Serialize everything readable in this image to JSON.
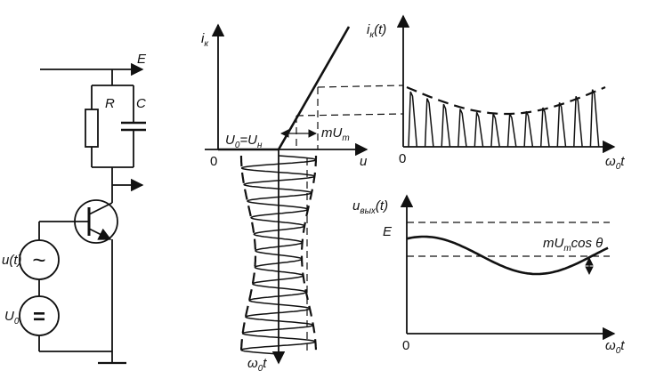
{
  "circuit": {
    "supply_label": "E",
    "resistor_label": "R",
    "capacitor_label": "C",
    "input_signal_label": "u(t)",
    "ac_source_symbol": "~",
    "bias_label": "U",
    "bias_subscript": "0",
    "dc_source_symbol": "="
  },
  "characteristic": {
    "y_label": "i",
    "y_subscript": "к",
    "x_label": "u",
    "origin_label": "0",
    "threshold_label_main": "U",
    "threshold_sub_0": "0",
    "threshold_eq": "=U",
    "threshold_sub_n": "н",
    "amplitude_label_prefix": "mU",
    "amplitude_sub": "m",
    "time_axis_label": "ω",
    "time_axis_sub": "0",
    "time_axis_suffix": "t"
  },
  "collector_current_plot": {
    "y_label": "i",
    "y_subscript": "к",
    "y_suffix": "(t)",
    "origin_label": "0",
    "x_label": "ω",
    "x_sub": "0",
    "x_suffix": "t"
  },
  "output_voltage_plot": {
    "y_label": "u",
    "y_subscript": "вых",
    "y_suffix": "(t)",
    "supply_level_label": "E",
    "origin_label": "0",
    "amplitude_label_prefix": "mU",
    "amplitude_sub": "m",
    "amplitude_label_suffix": "cos θ",
    "x_label": "ω",
    "x_sub": "0",
    "x_suffix": "t"
  }
}
